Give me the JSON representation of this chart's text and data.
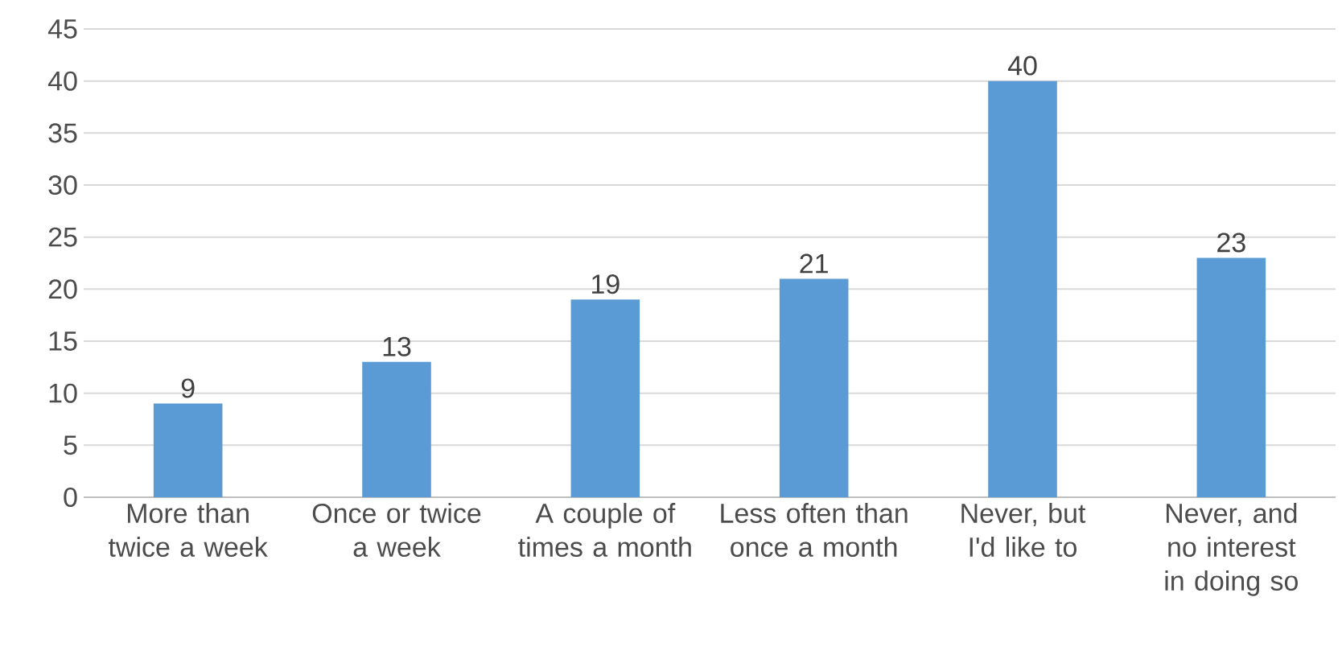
{
  "chart_data": {
    "type": "bar",
    "categories": [
      "More than twice a week",
      "Once or twice a week",
      "A couple of times a month",
      "Less often than once a month",
      "Never, but I'd like to",
      "Never, and no interest in doing so"
    ],
    "values": [
      9,
      13,
      19,
      21,
      40,
      23
    ],
    "color": "#5b9bd5",
    "ylim": [
      0,
      45
    ],
    "yticks": [
      0,
      5,
      10,
      15,
      20,
      25,
      30,
      35,
      40,
      45
    ],
    "grid": "y",
    "data_labels": true
  }
}
